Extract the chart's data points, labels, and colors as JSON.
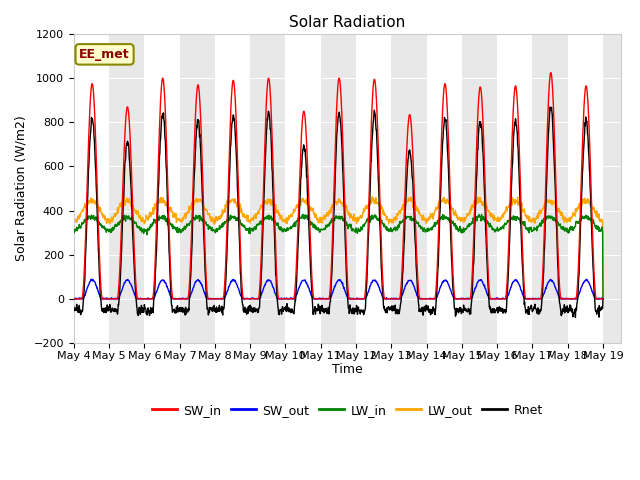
{
  "title": "Solar Radiation",
  "ylabel": "Solar Radiation (W/m2)",
  "xlabel": "Time",
  "annotation": "EE_met",
  "ylim": [
    -200,
    1200
  ],
  "x_tick_labels": [
    "May 4",
    "May 5",
    "May 6",
    "May 7",
    "May 8",
    "May 9",
    "May 10",
    "May 11",
    "May 12",
    "May 13",
    "May 14",
    "May 15",
    "May 16",
    "May 17",
    "May 18",
    "May 19"
  ],
  "legend_labels": [
    "SW_in",
    "SW_out",
    "LW_in",
    "LW_out",
    "Rnet"
  ],
  "line_colors": [
    "red",
    "blue",
    "green",
    "orange",
    "black"
  ],
  "plot_bg_white": "#ffffff",
  "plot_bg_gray": "#e8e8e8",
  "fig_bg": "#ffffff",
  "title_fontsize": 11,
  "label_fontsize": 9,
  "tick_fontsize": 8
}
